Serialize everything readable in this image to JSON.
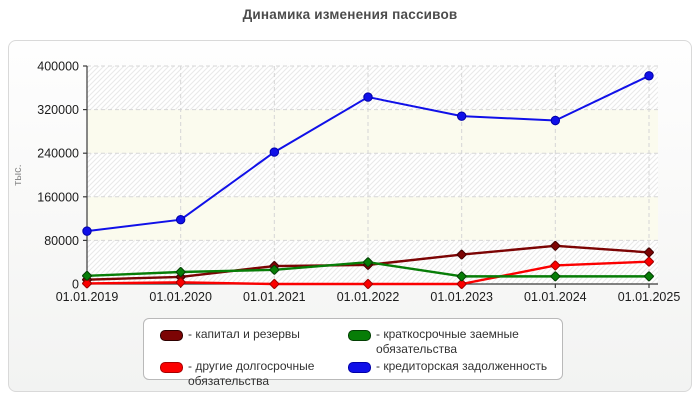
{
  "chart_data": {
    "type": "line",
    "title": "Динамика изменения пассивов",
    "ylabel": "тыс.",
    "xlabel": "",
    "x_categories": [
      "01.01.2019",
      "01.01.2020",
      "01.01.2021",
      "01.01.2022",
      "01.01.2023",
      "01.01.2024",
      "01.01.2025"
    ],
    "y_ticks": [
      0,
      80000,
      160000,
      240000,
      320000,
      400000
    ],
    "ylim": [
      0,
      400000
    ],
    "grid": "dashed-both-axes",
    "legend_position": "bottom",
    "plot_background": "alternating horizontal bands: diagonal-hatched white and plain ivory",
    "series": [
      {
        "name": "капитал и резервы",
        "color": "#7c0404",
        "edge": "#3f0000",
        "marker": "diamond",
        "values": [
          8000,
          13000,
          33000,
          35000,
          54000,
          70000,
          58000
        ]
      },
      {
        "name": "другие долгосрочные обязательства",
        "color": "#fb0000",
        "edge": "#9d0000",
        "marker": "diamond",
        "values": [
          1000,
          3000,
          0,
          0,
          0,
          34000,
          41000
        ]
      },
      {
        "name": "краткосрочные заемные обязательства",
        "color": "#077d07",
        "edge": "#033f03",
        "marker": "diamond",
        "values": [
          15000,
          22000,
          26000,
          40000,
          14000,
          14000,
          14000
        ]
      },
      {
        "name": "кредиторская задолженность",
        "color": "#1010e8",
        "edge": "#0000a8",
        "marker": "circle",
        "values": [
          97000,
          118000,
          242000,
          343000,
          308000,
          300000,
          382000
        ]
      }
    ]
  },
  "legend": {
    "items": [
      {
        "label": "- капитал и резервы",
        "color": "#7c0404",
        "border": "#2d0000"
      },
      {
        "label": "- другие долгосрочные обязательства",
        "color": "#fb0000",
        "border": "#a80000"
      },
      {
        "label": "- краткосрочные заемные обязательства",
        "color": "#077d07",
        "border": "#033f03"
      },
      {
        "label": "- кредиторская задолженность",
        "color": "#1010e8",
        "border": "#0000a8"
      }
    ]
  },
  "colors": {
    "panel_border": "#d9d9d9",
    "grid": "#d6d6d6",
    "axis": "#3a3a3a",
    "band_ivory": "#fbfbee",
    "hatch_line": "#e9e9e9",
    "tick_text": "#1c1c1c",
    "title_text": "#4c4c4c",
    "ylabel_text": "#8a8a8a"
  }
}
